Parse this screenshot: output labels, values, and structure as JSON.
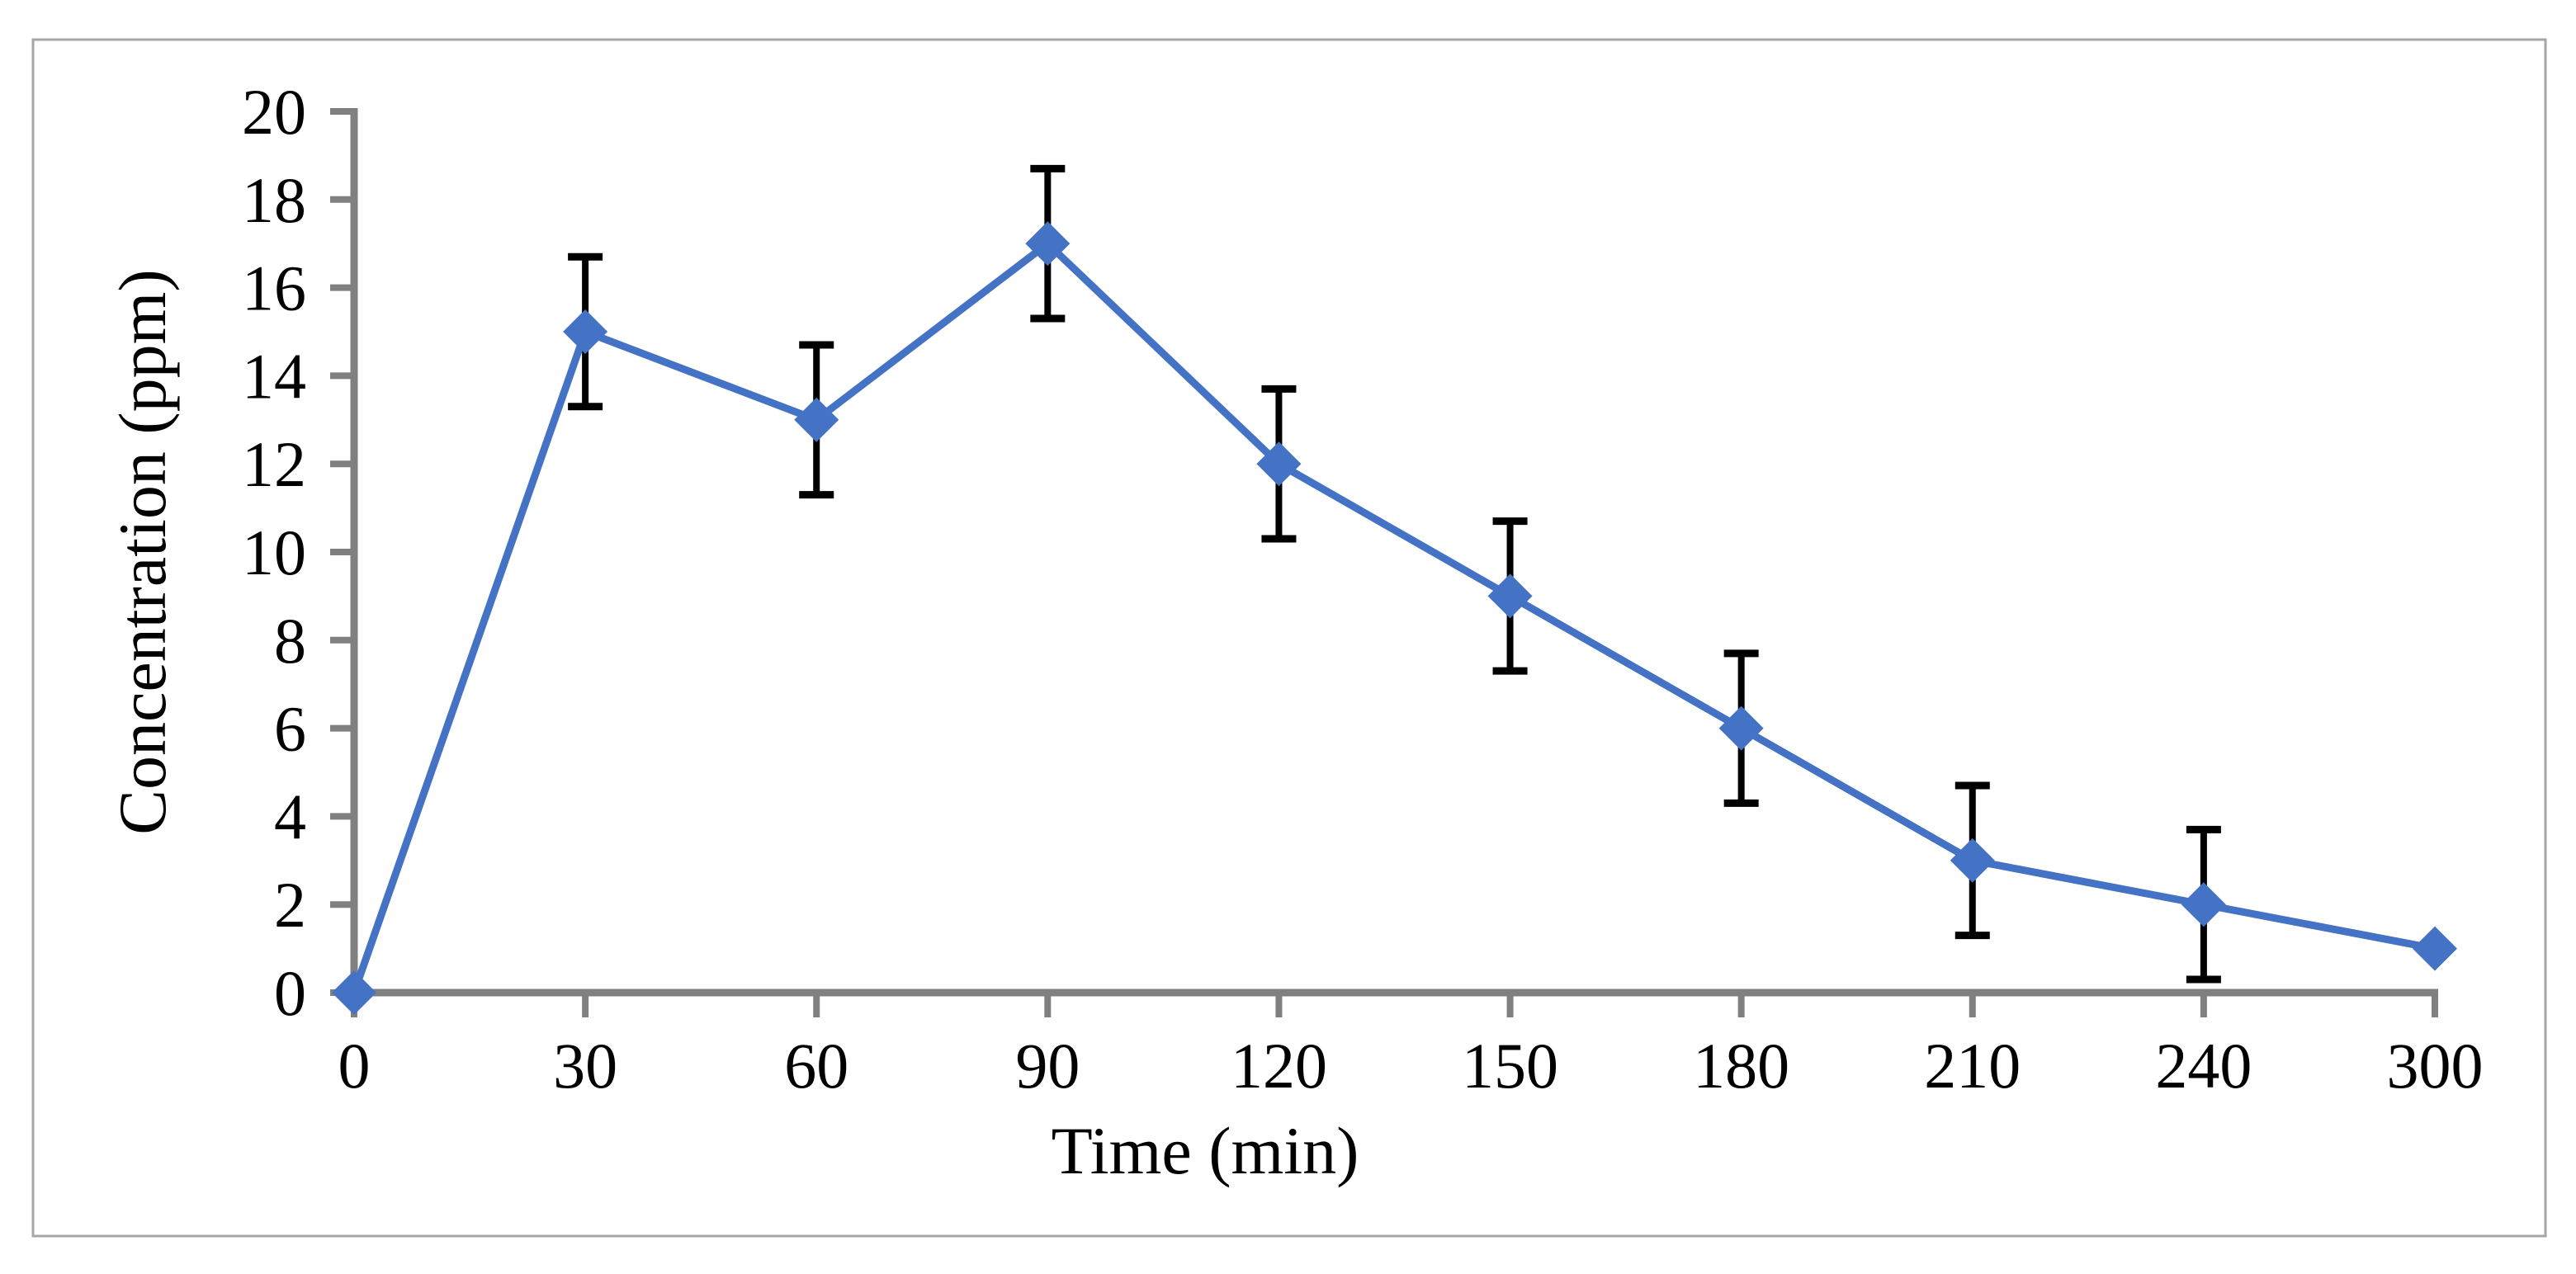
{
  "chart_data": {
    "type": "line",
    "title": "",
    "xlabel": "Time (min)",
    "ylabel": "Concentration (ppm)",
    "categories": [
      "0",
      "30",
      "60",
      "90",
      "120",
      "150",
      "180",
      "210",
      "240",
      "300"
    ],
    "series": [
      {
        "name": "Concentration (ppm)",
        "values": [
          0,
          15,
          13,
          17,
          12,
          9,
          6,
          3,
          2,
          1
        ],
        "errors": [
          0,
          1.7,
          1.7,
          1.7,
          1.7,
          1.7,
          1.7,
          1.7,
          1.7,
          0
        ]
      }
    ],
    "ylim": [
      0,
      20
    ],
    "ytick_step": 2,
    "grid": false,
    "legend": "none",
    "marker": "diamond",
    "colors": {
      "line": "#4472C4",
      "marker": "#4472C4",
      "error_bar": "#000000",
      "axis": "#808080",
      "tick_text": "#000000",
      "frame_border": "#A6A6A6",
      "background": "#FFFFFF"
    }
  }
}
